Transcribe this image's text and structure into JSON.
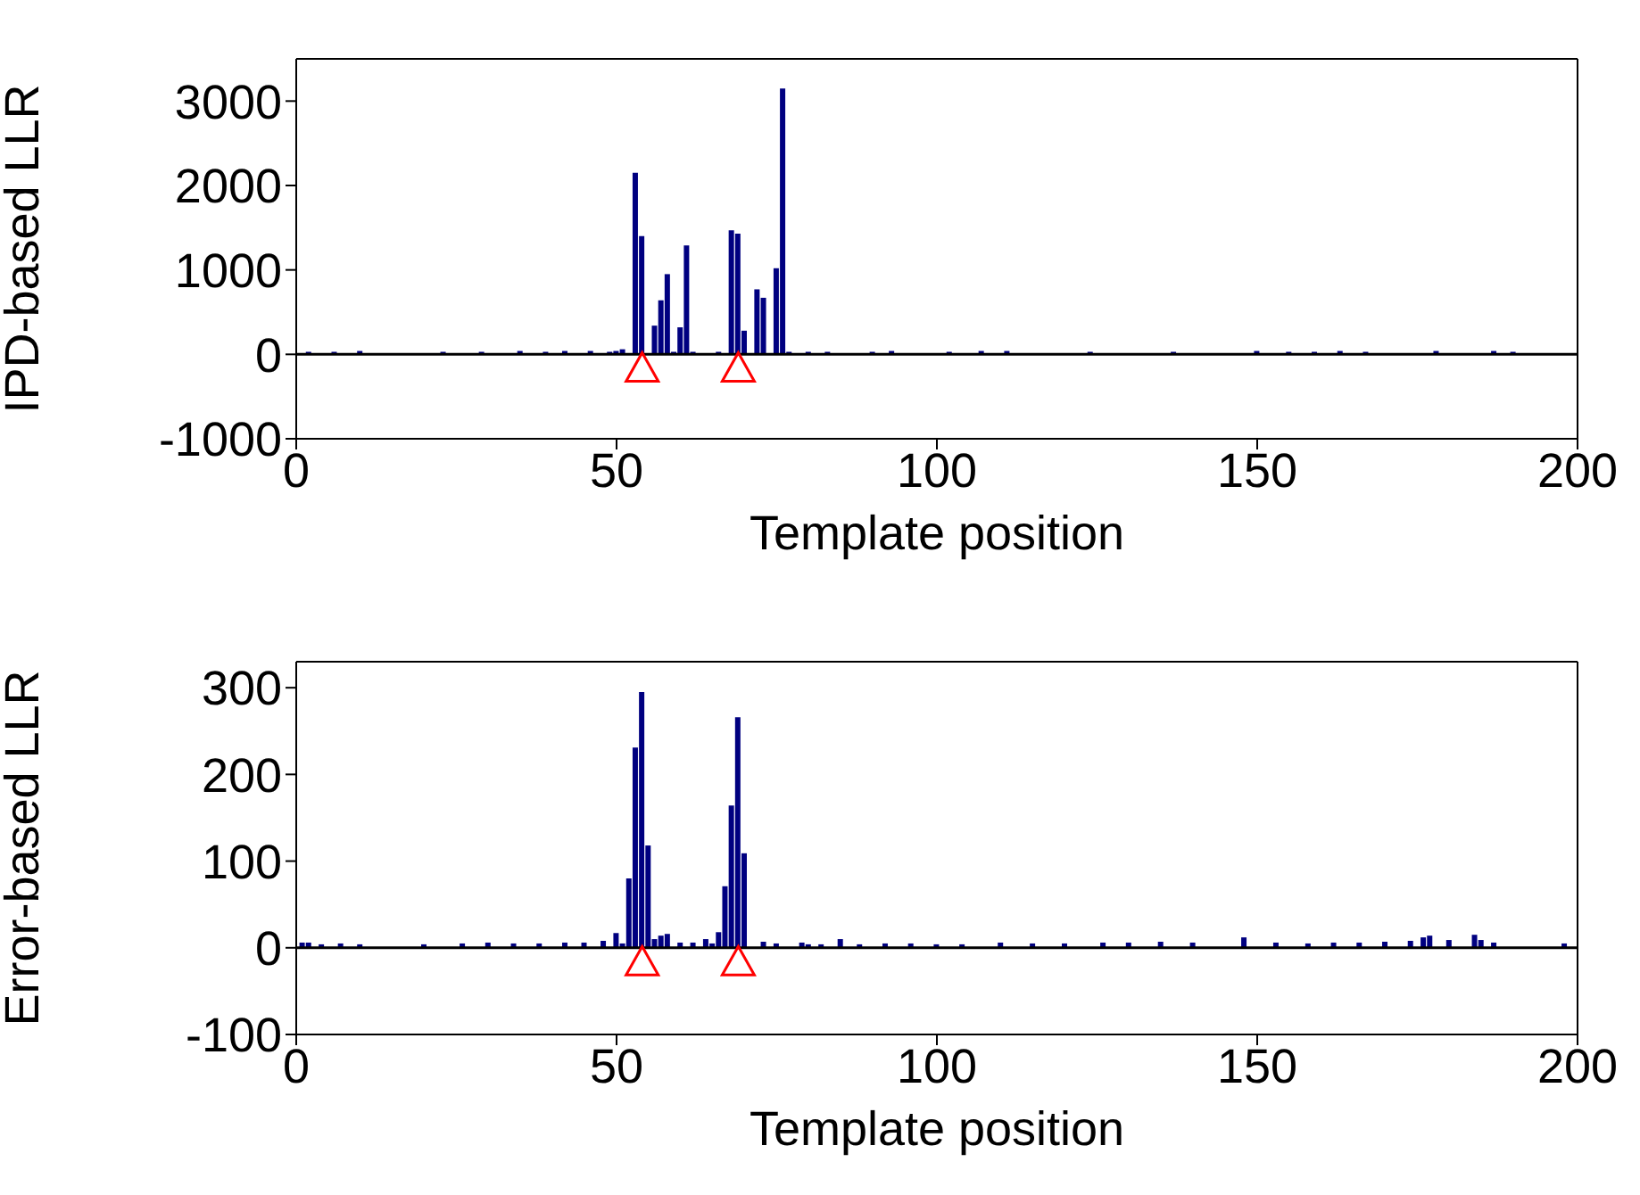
{
  "chart_data": [
    {
      "type": "bar",
      "ylabel": "IPD-based LLR",
      "xlabel": "Template position",
      "xlim": [
        0,
        200
      ],
      "xticks": [
        0,
        50,
        100,
        150,
        200
      ],
      "ylim": [
        -1000,
        3500
      ],
      "yticks": [
        -1000,
        0,
        1000,
        2000,
        3000
      ],
      "grid": false,
      "series": [
        {
          "type": "bar",
          "color": "#000080",
          "x": [
            2,
            6,
            10,
            23,
            29,
            35,
            39,
            42,
            46,
            49,
            50,
            51,
            53,
            54,
            56,
            57,
            58,
            59,
            60,
            61,
            62,
            66,
            68,
            69,
            70,
            72,
            73,
            75,
            76,
            77,
            80,
            83,
            90,
            93,
            102,
            107,
            111,
            124,
            137,
            150,
            155,
            159,
            163,
            167,
            178,
            187,
            190
          ],
          "values": [
            30,
            30,
            40,
            30,
            30,
            40,
            30,
            40,
            40,
            30,
            40,
            60,
            2150,
            1400,
            340,
            640,
            950,
            30,
            320,
            1290,
            30,
            30,
            1470,
            1430,
            280,
            770,
            670,
            1020,
            3150,
            30,
            30,
            30,
            30,
            40,
            30,
            40,
            40,
            30,
            30,
            40,
            30,
            30,
            40,
            30,
            40,
            40,
            30
          ]
        },
        {
          "type": "scatter",
          "color": "#ff0000",
          "marker": "triangle",
          "x": [
            54,
            69
          ],
          "values": [
            -170,
            -170
          ]
        }
      ],
      "ref_lines": [
        {
          "axis": "y",
          "value": 0,
          "color": "#000000"
        }
      ]
    },
    {
      "type": "bar",
      "ylabel": "Error-based LLR",
      "xlabel": "Template position",
      "xlim": [
        0,
        200
      ],
      "xticks": [
        0,
        50,
        100,
        150,
        200
      ],
      "ylim": [
        -100,
        330
      ],
      "yticks": [
        -100,
        0,
        100,
        200,
        300
      ],
      "grid": false,
      "series": [
        {
          "type": "bar",
          "color": "#000080",
          "x": [
            1,
            2,
            4,
            7,
            10,
            20,
            26,
            30,
            34,
            38,
            42,
            45,
            48,
            50,
            51,
            52,
            53,
            54,
            55,
            56,
            57,
            58,
            60,
            62,
            64,
            65,
            66,
            67,
            68,
            69,
            70,
            73,
            75,
            79,
            80,
            82,
            85,
            88,
            92,
            96,
            100,
            104,
            110,
            115,
            120,
            126,
            130,
            135,
            140,
            148,
            153,
            158,
            162,
            166,
            170,
            174,
            176,
            177,
            180,
            184,
            185,
            187,
            198
          ],
          "values": [
            6,
            6,
            4,
            5,
            4,
            4,
            5,
            6,
            5,
            5,
            6,
            6,
            8,
            17,
            5,
            80,
            231,
            295,
            118,
            10,
            14,
            16,
            6,
            6,
            10,
            5,
            18,
            71,
            164,
            266,
            109,
            7,
            5,
            6,
            4,
            4,
            10,
            4,
            5,
            5,
            4,
            4,
            6,
            5,
            5,
            6,
            6,
            7,
            6,
            12,
            6,
            5,
            6,
            6,
            7,
            8,
            12,
            14,
            9,
            15,
            9,
            6,
            5
          ]
        },
        {
          "type": "scatter",
          "color": "#ff0000",
          "marker": "triangle",
          "x": [
            54,
            69
          ],
          "values": [
            -17,
            -17
          ]
        }
      ],
      "ref_lines": [
        {
          "axis": "y",
          "value": 0,
          "color": "#000000"
        }
      ]
    }
  ]
}
